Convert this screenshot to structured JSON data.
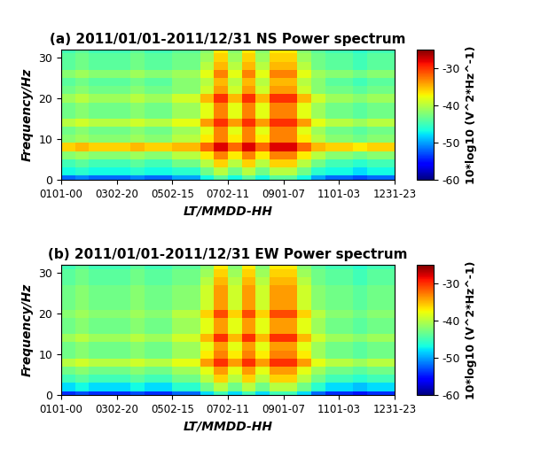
{
  "chart_data": [
    {
      "type": "heatmap",
      "title": "(a) 2011/01/01-2011/12/31 NS Power spectrum",
      "x_label": "LT/MMDD-HH",
      "y_label": "Frequency/Hz",
      "xlim": [
        0,
        8759
      ],
      "xticks": [
        {
          "value": 0,
          "label": "0101-00"
        },
        {
          "value": 1460,
          "label": "0302-20"
        },
        {
          "value": 2919,
          "label": "0502-15"
        },
        {
          "value": 4379,
          "label": "0702-11"
        },
        {
          "value": 5839,
          "label": "0901-07"
        },
        {
          "value": 7299,
          "label": "1101-03"
        },
        {
          "value": 8759,
          "label": "1231-23"
        }
      ],
      "ylim": [
        0,
        32
      ],
      "yticks": [
        0,
        10,
        20,
        30
      ],
      "x_edges": [
        0,
        365,
        730,
        1095,
        1460,
        1825,
        2190,
        2555,
        2920,
        3285,
        3650,
        4015,
        4380,
        4745,
        5110,
        5475,
        5840,
        6205,
        6570,
        6935,
        7300,
        7665,
        8030,
        8395,
        8759
      ],
      "y_edges": [
        0,
        1,
        3,
        5,
        7,
        9,
        11,
        13,
        15,
        17,
        19,
        21,
        23,
        25,
        27,
        29,
        31,
        32
      ],
      "cells": [
        [
          -52,
          -51,
          -52,
          -52,
          -52,
          -51,
          -52,
          -52,
          -50,
          -50,
          -47,
          -44,
          -47,
          -44,
          -47,
          -44,
          -44,
          -47,
          -50,
          -52,
          -52,
          -53,
          -52,
          -52
        ],
        [
          -47,
          -46,
          -47,
          -47,
          -47,
          -46,
          -47,
          -47,
          -46,
          -46,
          -43,
          -40,
          -43,
          -40,
          -43,
          -40,
          -40,
          -43,
          -46,
          -47,
          -47,
          -48,
          -47,
          -47
        ],
        [
          -45,
          -44,
          -45,
          -45,
          -45,
          -44,
          -45,
          -45,
          -43,
          -43,
          -40,
          -36,
          -40,
          -36,
          -40,
          -36,
          -36,
          -40,
          -43,
          -45,
          -45,
          -46,
          -45,
          -45
        ],
        [
          -42,
          -41,
          -42,
          -42,
          -42,
          -41,
          -42,
          -42,
          -40,
          -40,
          -37,
          -33,
          -37,
          -33,
          -37,
          -33,
          -33,
          -37,
          -40,
          -42,
          -42,
          -43,
          -42,
          -42
        ],
        [
          -36,
          -35,
          -36,
          -36,
          -36,
          -35,
          -36,
          -36,
          -35,
          -35,
          -32,
          -28,
          -32,
          -28,
          -32,
          -28,
          -28,
          -32,
          -35,
          -36,
          -36,
          -37,
          -36,
          -36
        ],
        [
          -42,
          -41,
          -42,
          -42,
          -42,
          -41,
          -42,
          -42,
          -40,
          -40,
          -37,
          -33,
          -37,
          -33,
          -37,
          -33,
          -33,
          -37,
          -40,
          -42,
          -42,
          -43,
          -42,
          -42
        ],
        [
          -43,
          -42,
          -43,
          -43,
          -43,
          -42,
          -43,
          -43,
          -41,
          -41,
          -38,
          -33,
          -38,
          -33,
          -38,
          -33,
          -33,
          -38,
          -41,
          -43,
          -43,
          -44,
          -43,
          -43
        ],
        [
          -40,
          -39,
          -40,
          -40,
          -40,
          -39,
          -40,
          -40,
          -38,
          -38,
          -34,
          -30,
          -34,
          -30,
          -34,
          -30,
          -30,
          -34,
          -38,
          -40,
          -40,
          -41,
          -40,
          -40
        ],
        [
          -43,
          -42,
          -43,
          -43,
          -43,
          -42,
          -43,
          -43,
          -41,
          -41,
          -38,
          -33,
          -38,
          -33,
          -38,
          -33,
          -33,
          -38,
          -41,
          -43,
          -43,
          -44,
          -43,
          -43
        ],
        [
          -43,
          -42,
          -43,
          -43,
          -43,
          -42,
          -43,
          -43,
          -41,
          -41,
          -38,
          -33,
          -38,
          -33,
          -38,
          -33,
          -33,
          -38,
          -41,
          -43,
          -43,
          -44,
          -43,
          -43
        ],
        [
          -41,
          -40,
          -41,
          -41,
          -41,
          -40,
          -41,
          -41,
          -39,
          -39,
          -35,
          -30,
          -35,
          -30,
          -35,
          -30,
          -30,
          -35,
          -39,
          -41,
          -41,
          -42,
          -41,
          -41
        ],
        [
          -43,
          -42,
          -43,
          -43,
          -43,
          -42,
          -43,
          -43,
          -42,
          -42,
          -39,
          -34,
          -39,
          -34,
          -39,
          -34,
          -34,
          -39,
          -42,
          -43,
          -43,
          -44,
          -43,
          -43
        ],
        [
          -44,
          -43,
          -44,
          -44,
          -44,
          -43,
          -44,
          -44,
          -42,
          -42,
          -40,
          -35,
          -40,
          -35,
          -40,
          -35,
          -35,
          -40,
          -42,
          -44,
          -44,
          -45,
          -44,
          -44
        ],
        [
          -42,
          -41,
          -42,
          -42,
          -42,
          -41,
          -42,
          -42,
          -41,
          -41,
          -38,
          -33,
          -38,
          -33,
          -38,
          -33,
          -33,
          -38,
          -41,
          -42,
          -42,
          -43,
          -42,
          -42
        ],
        [
          -44,
          -43,
          -44,
          -44,
          -44,
          -43,
          -44,
          -44,
          -43,
          -43,
          -40,
          -35,
          -40,
          -35,
          -40,
          -35,
          -35,
          -40,
          -43,
          -44,
          -44,
          -45,
          -44,
          -44
        ],
        [
          -44,
          -43,
          -44,
          -44,
          -44,
          -43,
          -44,
          -44,
          -43,
          -43,
          -41,
          -36,
          -41,
          -36,
          -41,
          -36,
          -36,
          -41,
          -43,
          -44,
          -44,
          -45,
          -44,
          -44
        ],
        [
          -45,
          -44,
          -45,
          -45,
          -45,
          -44,
          -45,
          -45,
          -44,
          -44,
          -42,
          -37,
          -42,
          -37,
          -42,
          -37,
          -37,
          -42,
          -44,
          -45,
          -45,
          -46,
          -45,
          -45
        ]
      ],
      "colorbar": {
        "range": [
          -60,
          -25
        ],
        "ticks": [
          -60,
          -50,
          -40,
          -30
        ],
        "label": "10*log10 (V^2*Hz^-1)"
      }
    },
    {
      "type": "heatmap",
      "title": "(b) 2011/01/01-2011/12/31 EW Power spectrum",
      "x_label": "LT/MMDD-HH",
      "y_label": "Frequency/Hz",
      "xlim": [
        0,
        8759
      ],
      "xticks": [
        {
          "value": 0,
          "label": "0101-00"
        },
        {
          "value": 1460,
          "label": "0302-20"
        },
        {
          "value": 2919,
          "label": "0502-15"
        },
        {
          "value": 4379,
          "label": "0702-11"
        },
        {
          "value": 5839,
          "label": "0901-07"
        },
        {
          "value": 7299,
          "label": "1101-03"
        },
        {
          "value": 8759,
          "label": "1231-23"
        }
      ],
      "ylim": [
        0,
        32
      ],
      "yticks": [
        0,
        10,
        20,
        30
      ],
      "x_edges": [
        0,
        365,
        730,
        1095,
        1460,
        1825,
        2190,
        2555,
        2920,
        3285,
        3650,
        4015,
        4380,
        4745,
        5110,
        5475,
        5840,
        6205,
        6570,
        6935,
        7300,
        7665,
        8030,
        8395,
        8759
      ],
      "y_edges": [
        0,
        1,
        3,
        5,
        7,
        9,
        11,
        13,
        15,
        17,
        19,
        21,
        23,
        25,
        27,
        29,
        31,
        32
      ],
      "cells": [
        [
          -54,
          -53,
          -54,
          -54,
          -54,
          -53,
          -54,
          -54,
          -52,
          -52,
          -48,
          -45,
          -48,
          -45,
          -48,
          -45,
          -45,
          -48,
          -52,
          -54,
          -54,
          -55,
          -54,
          -54
        ],
        [
          -48,
          -47,
          -48,
          -48,
          -48,
          -47,
          -48,
          -48,
          -46,
          -46,
          -43,
          -40,
          -43,
          -40,
          -43,
          -40,
          -40,
          -43,
          -46,
          -48,
          -48,
          -49,
          -48,
          -48
        ],
        [
          -45,
          -44,
          -45,
          -45,
          -45,
          -44,
          -45,
          -45,
          -43,
          -43,
          -40,
          -36,
          -40,
          -36,
          -40,
          -36,
          -36,
          -40,
          -43,
          -45,
          -45,
          -46,
          -45,
          -45
        ],
        [
          -43,
          -42,
          -43,
          -43,
          -43,
          -42,
          -43,
          -43,
          -41,
          -41,
          -38,
          -34,
          -38,
          -34,
          -38,
          -34,
          -34,
          -38,
          -41,
          -43,
          -43,
          -44,
          -43,
          -43
        ],
        [
          -40,
          -39,
          -40,
          -40,
          -40,
          -39,
          -40,
          -40,
          -38,
          -38,
          -34,
          -30,
          -34,
          -30,
          -34,
          -30,
          -30,
          -34,
          -38,
          -40,
          -40,
          -41,
          -40,
          -40
        ],
        [
          -43,
          -42,
          -43,
          -43,
          -43,
          -42,
          -43,
          -43,
          -41,
          -41,
          -37,
          -33,
          -37,
          -33,
          -37,
          -33,
          -33,
          -37,
          -41,
          -43,
          -43,
          -44,
          -43,
          -43
        ],
        [
          -43,
          -42,
          -43,
          -43,
          -43,
          -42,
          -43,
          -43,
          -41,
          -41,
          -38,
          -34,
          -38,
          -34,
          -38,
          -34,
          -34,
          -38,
          -41,
          -43,
          -43,
          -44,
          -43,
          -43
        ],
        [
          -41,
          -40,
          -41,
          -41,
          -41,
          -40,
          -41,
          -41,
          -39,
          -39,
          -35,
          -30,
          -35,
          -30,
          -35,
          -30,
          -30,
          -35,
          -39,
          -41,
          -41,
          -42,
          -41,
          -41
        ],
        [
          -43,
          -42,
          -43,
          -43,
          -43,
          -42,
          -43,
          -43,
          -41,
          -41,
          -38,
          -34,
          -38,
          -34,
          -38,
          -34,
          -34,
          -38,
          -41,
          -43,
          -43,
          -44,
          -43,
          -43
        ],
        [
          -43,
          -42,
          -43,
          -43,
          -43,
          -42,
          -43,
          -43,
          -41,
          -41,
          -38,
          -34,
          -38,
          -34,
          -38,
          -34,
          -34,
          -38,
          -41,
          -43,
          -43,
          -44,
          -43,
          -43
        ],
        [
          -42,
          -41,
          -42,
          -42,
          -42,
          -41,
          -42,
          -42,
          -40,
          -40,
          -36,
          -31,
          -36,
          -31,
          -36,
          -31,
          -31,
          -36,
          -40,
          -42,
          -42,
          -43,
          -42,
          -42
        ],
        [
          -43,
          -42,
          -43,
          -43,
          -43,
          -42,
          -43,
          -43,
          -42,
          -42,
          -39,
          -34,
          -39,
          -34,
          -39,
          -34,
          -34,
          -39,
          -42,
          -43,
          -43,
          -44,
          -43,
          -43
        ],
        [
          -43,
          -42,
          -43,
          -43,
          -43,
          -42,
          -43,
          -43,
          -42,
          -42,
          -39,
          -34,
          -39,
          -34,
          -39,
          -34,
          -34,
          -39,
          -42,
          -43,
          -43,
          -44,
          -43,
          -43
        ],
        [
          -43,
          -42,
          -43,
          -43,
          -43,
          -42,
          -43,
          -43,
          -42,
          -42,
          -39,
          -34,
          -39,
          -34,
          -39,
          -34,
          -34,
          -39,
          -42,
          -43,
          -43,
          -44,
          -43,
          -43
        ],
        [
          -44,
          -43,
          -44,
          -44,
          -44,
          -43,
          -44,
          -44,
          -43,
          -43,
          -40,
          -35,
          -40,
          -35,
          -40,
          -35,
          -35,
          -40,
          -43,
          -44,
          -44,
          -45,
          -44,
          -44
        ],
        [
          -44,
          -43,
          -44,
          -44,
          -44,
          -43,
          -44,
          -44,
          -43,
          -43,
          -41,
          -36,
          -41,
          -36,
          -41,
          -36,
          -36,
          -41,
          -43,
          -44,
          -44,
          -45,
          -44,
          -44
        ],
        [
          -45,
          -44,
          -45,
          -45,
          -45,
          -44,
          -45,
          -45,
          -44,
          -44,
          -42,
          -37,
          -42,
          -37,
          -42,
          -37,
          -37,
          -42,
          -44,
          -45,
          -45,
          -46,
          -45,
          -45
        ]
      ],
      "colorbar": {
        "range": [
          -60,
          -25
        ],
        "ticks": [
          -60,
          -50,
          -40,
          -30
        ],
        "label": "10*log10 (V^2*Hz^-1)"
      }
    }
  ]
}
